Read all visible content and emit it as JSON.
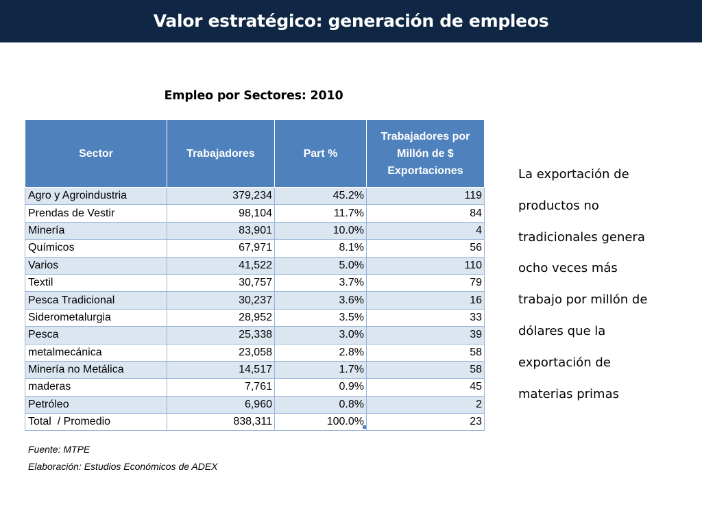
{
  "header": {
    "title": "Valor estratégico: generación de empleos"
  },
  "table_title": "Empleo por Sectores: 2010",
  "table": {
    "headers": {
      "sector": "Sector",
      "trabajadores": "Trabajadores",
      "part": "Part %",
      "ratio_line1": "Trabajadores por",
      "ratio_line2": "Millón de $",
      "ratio_line3": "Exportaciones"
    },
    "rows": [
      {
        "sector": "Agro y Agroindustria",
        "trabajadores": "379,234",
        "part": "45.2%",
        "ratio": "119"
      },
      {
        "sector": "Prendas de Vestir",
        "trabajadores": "98,104",
        "part": "11.7%",
        "ratio": "84"
      },
      {
        "sector": "Minería",
        "trabajadores": "83,901",
        "part": "10.0%",
        "ratio": "4"
      },
      {
        "sector": "Químicos",
        "trabajadores": "67,971",
        "part": "8.1%",
        "ratio": "56"
      },
      {
        "sector": "Varios",
        "trabajadores": "41,522",
        "part": "5.0%",
        "ratio": "110"
      },
      {
        "sector": "Textil",
        "trabajadores": "30,757",
        "part": "3.7%",
        "ratio": "79"
      },
      {
        "sector": "Pesca Tradicional",
        "trabajadores": "30,237",
        "part": "3.6%",
        "ratio": "16"
      },
      {
        "sector": "Siderometalurgia",
        "trabajadores": "28,952",
        "part": "3.5%",
        "ratio": "33"
      },
      {
        "sector": "Pesca",
        "trabajadores": "25,338",
        "part": "3.0%",
        "ratio": "39"
      },
      {
        "sector": "metalmecánica",
        "trabajadores": "23,058",
        "part": "2.8%",
        "ratio": "58"
      },
      {
        "sector": "Minería no Metálica",
        "trabajadores": "14,517",
        "part": "1.7%",
        "ratio": "58"
      },
      {
        "sector": "maderas",
        "trabajadores": "7,761",
        "part": "0.9%",
        "ratio": "45"
      },
      {
        "sector": "Petróleo",
        "trabajadores": "6,960",
        "part": "0.8%",
        "ratio": "2"
      },
      {
        "sector": "Total  / Promedio",
        "trabajadores": "838,311",
        "part": "100.0%",
        "ratio": "23"
      }
    ]
  },
  "notes": {
    "source": "Fuente: MTPE",
    "elaboration": "Elaboración: Estudios Económicos de ADEX"
  },
  "side_text": {
    "lines": [
      "La exportación de",
      "productos no",
      "tradicionales genera",
      "ocho veces más",
      "trabajo por millón de",
      "dólares que la",
      "exportación de",
      "materias primas"
    ]
  },
  "colors": {
    "header_bg": "#0f2744",
    "table_header_bg": "#4f81bd",
    "row_alt_bg": "#dce6f1",
    "row_border": "#95b3d7"
  }
}
